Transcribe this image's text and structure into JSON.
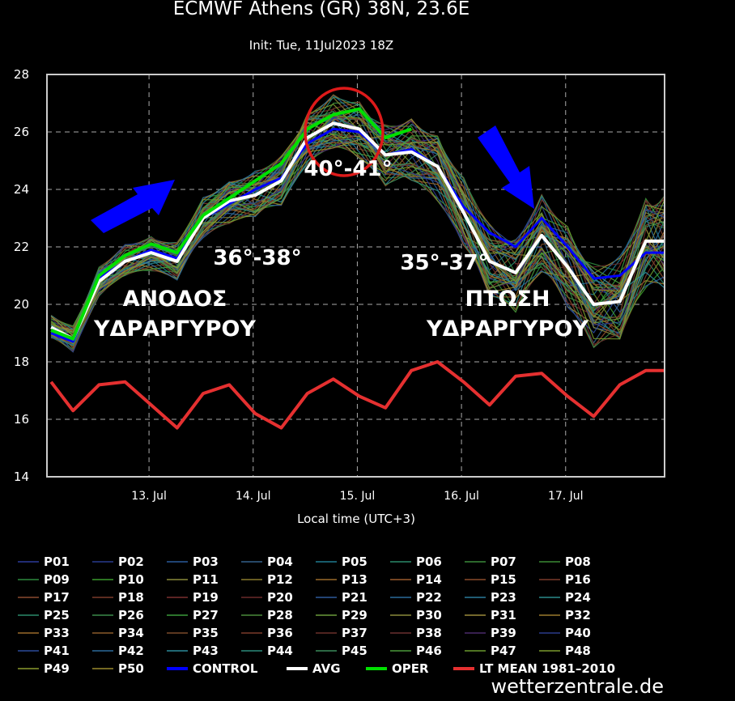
{
  "chart_data": {
    "type": "line",
    "title": "ECMWF Athens (GR) 38N, 23.6E",
    "subtitle": "Init: Tue, 11Jul2023 18Z",
    "xlabel": "Local time (UTC+3)",
    "ylabel": "",
    "ylim": [
      14,
      28
    ],
    "yticks": [
      14,
      16,
      18,
      20,
      22,
      24,
      26,
      28
    ],
    "xticks": [
      "13. Jul",
      "14. Jul",
      "15. Jul",
      "16. Jul",
      "17. Jul"
    ],
    "xtick_pos": [
      1,
      2,
      3,
      4,
      5
    ],
    "xlim": [
      0.02,
      5.95
    ],
    "grid": true,
    "x": [
      0.06,
      0.27,
      0.52,
      0.77,
      1.02,
      1.27,
      1.52,
      1.77,
      2.02,
      2.27,
      2.52,
      2.77,
      3.02,
      3.27,
      3.52,
      3.77,
      4.02,
      4.27,
      4.52,
      4.77,
      5.02,
      5.27,
      5.52,
      5.77,
      5.95
    ],
    "series": [
      {
        "name": "CONTROL",
        "color": "#0000ff",
        "values": [
          19.0,
          18.7,
          20.9,
          21.5,
          21.9,
          21.6,
          23.0,
          23.5,
          24.0,
          24.4,
          25.6,
          26.1,
          26.0,
          25.2,
          25.4,
          24.8,
          23.4,
          22.5,
          22.0,
          23.0,
          22.0,
          20.9,
          21.0,
          21.8,
          21.8
        ]
      },
      {
        "name": "AVG",
        "color": "#ffffff",
        "values": [
          19.2,
          18.8,
          20.8,
          21.5,
          21.8,
          21.5,
          23.0,
          23.6,
          23.8,
          24.3,
          25.8,
          26.3,
          26.1,
          25.2,
          25.3,
          24.8,
          23.2,
          21.5,
          21.1,
          22.4,
          21.3,
          20.0,
          20.1,
          22.2,
          22.2
        ]
      },
      {
        "name": "OPER",
        "color": "#00e000",
        "values": [
          19.1,
          18.8,
          21.0,
          21.7,
          22.1,
          21.8,
          23.1,
          23.7,
          24.3,
          24.9,
          26.1,
          26.6,
          26.8,
          25.8,
          26.1,
          null,
          null,
          null,
          null,
          null,
          null,
          null,
          null,
          null,
          null
        ]
      },
      {
        "name": "LT MEAN 1981-2010",
        "color": "#e53030",
        "values": [
          17.3,
          16.3,
          17.2,
          17.3,
          16.5,
          15.7,
          16.9,
          17.2,
          16.2,
          15.7,
          16.9,
          17.4,
          16.8,
          16.4,
          17.7,
          18.0,
          17.3,
          16.5,
          17.5,
          17.6,
          16.8,
          16.1,
          17.2,
          17.7,
          17.7
        ]
      }
    ],
    "ensemble_members": [
      "P01",
      "P02",
      "P03",
      "P04",
      "P05",
      "P06",
      "P07",
      "P08",
      "P09",
      "P10",
      "P11",
      "P12",
      "P13",
      "P14",
      "P15",
      "P16",
      "P17",
      "P18",
      "P19",
      "P20",
      "P21",
      "P22",
      "P23",
      "P24",
      "P25",
      "P26",
      "P27",
      "P28",
      "P29",
      "P30",
      "P31",
      "P32",
      "P33",
      "P34",
      "P35",
      "P36",
      "P37",
      "P38",
      "P39",
      "P40",
      "P41",
      "P42",
      "P43",
      "P44",
      "P45",
      "P46",
      "P47",
      "P48",
      "P49",
      "P50"
    ],
    "member_colors": [
      "#2c3a9a",
      "#283a8e",
      "#2a5a9a",
      "#33608a",
      "#1f7a90",
      "#2b8a6a",
      "#3a8a3a",
      "#3a8a34",
      "#2e8a3e",
      "#3a9a2e",
      "#8a8a3a",
      "#8a7a2e",
      "#9a6a2a",
      "#9a5a2e",
      "#8a4a2a",
      "#7a3a2a",
      "#8a4a30",
      "#7a3b2a",
      "#7a3030",
      "#6a2a2a",
      "#2f5a9a",
      "#2a6a9a",
      "#2a7a9a",
      "#2a8a8a",
      "#2a8a6a",
      "#3a8a4a",
      "#3a9a3a",
      "#4a8a3a",
      "#6a9a3a",
      "#8a8a3a",
      "#9a8a3a",
      "#9a7a2e",
      "#9a6a2a",
      "#8a5a2a",
      "#7a4a2a",
      "#7a3a2a",
      "#6a302a",
      "#6a3030",
      "#4a2a6a",
      "#2a3a8a",
      "#2a4a9a",
      "#2a6a9a",
      "#2a8a9a",
      "#2a8a7a",
      "#3a8a5a",
      "#4a9a3a",
      "#6a9a2e",
      "#7a9a2e",
      "#8a9a2e",
      "#9a8a2e"
    ],
    "legend_position": "bottom",
    "annotations": [
      "ΑΝΟΔΟΣ ΥΔΡΑΡΓΥΡΟΥ",
      "36°-38°",
      "40°-41°",
      "35°-37°",
      "ΠΤΩΣΗ ΥΔΡΑΡΓΥΡΟΥ"
    ]
  },
  "annotations": {
    "rise_label_1": "ΑΝΟΔΟΣ",
    "rise_label_2": "ΥΔΡΑΡΓΥΡΟΥ",
    "range_1": "36°-38°",
    "range_2": "40°-41°",
    "range_3": "35°-37°",
    "fall_label_1": "ΠΤΩΣΗ",
    "fall_label_2": "ΥΔΡΑΡΓΥΡΟΥ"
  },
  "watermark": "wetterzentrale.de"
}
